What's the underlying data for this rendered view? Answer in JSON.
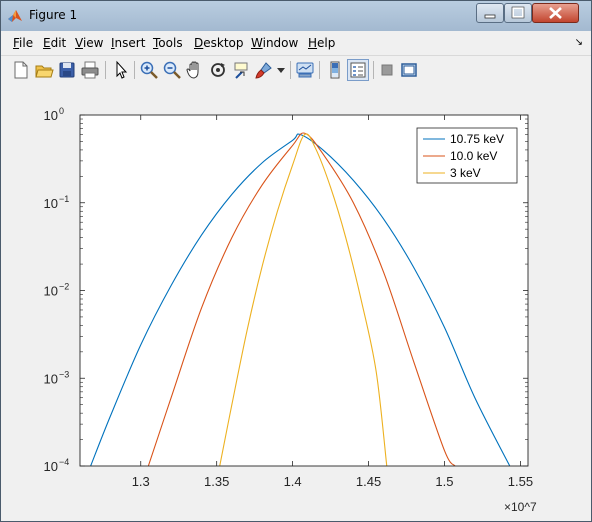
{
  "window": {
    "title": "Figure 1"
  },
  "menu": [
    {
      "label": "File"
    },
    {
      "label": "Edit"
    },
    {
      "label": "View"
    },
    {
      "label": "Insert"
    },
    {
      "label": "Tools"
    },
    {
      "label": "Desktop"
    },
    {
      "label": "Window"
    },
    {
      "label": "Help"
    }
  ],
  "toolbar": {
    "icons": [
      "new-figure-icon",
      "open-file-icon",
      "save-icon",
      "print-icon",
      "pointer-icon",
      "zoom-in-icon",
      "zoom-out-icon",
      "pan-icon",
      "rotate-3d-icon",
      "data-cursor-icon",
      "brush-icon",
      "link-plot-icon",
      "colorbar-icon",
      "legend-icon",
      "hide-tools-icon",
      "show-tools-icon"
    ]
  },
  "chart_data": {
    "type": "line",
    "title": "",
    "xlabel": "",
    "ylabel": "",
    "x_multiplier": "×10^7",
    "xlim": [
      1.26,
      1.555
    ],
    "ylim": [
      0.0001,
      1
    ],
    "yscale": "log",
    "grid": false,
    "legend_position": "top-right",
    "x_ticks": [
      "1.3",
      "1.35",
      "1.4",
      "1.45",
      "1.5",
      "1.55"
    ],
    "x_tick_values": [
      1.3,
      1.35,
      1.4,
      1.45,
      1.5,
      1.55
    ],
    "y_tick_values": [
      1,
      0.1,
      0.01,
      0.001,
      0.0001
    ],
    "series": [
      {
        "name": "10.75 keV",
        "color": "#0072bd",
        "x": [
          1.267,
          1.28,
          1.3,
          1.32,
          1.34,
          1.36,
          1.38,
          1.4,
          1.405,
          1.42,
          1.44,
          1.46,
          1.48,
          1.5,
          1.52,
          1.543
        ],
        "y": [
          0.0001,
          0.00037,
          0.0024,
          0.0114,
          0.0428,
          0.1247,
          0.2857,
          0.5145,
          0.6,
          0.4,
          0.18,
          0.065,
          0.018,
          0.0038,
          0.0006,
          0.0001
        ]
      },
      {
        "name": "10.0 keV",
        "color": "#d95319",
        "x": [
          1.305,
          1.32,
          1.34,
          1.36,
          1.38,
          1.4,
          1.408,
          1.42,
          1.44,
          1.46,
          1.48,
          1.5,
          1.507
        ],
        "y": [
          0.0001,
          0.0006,
          0.0063,
          0.04,
          0.16,
          0.45,
          0.62,
          0.36,
          0.1,
          0.016,
          0.0015,
          0.00015,
          0.0001
        ]
      },
      {
        "name": "3 keV",
        "color": "#edb120",
        "x": [
          1.352,
          1.36,
          1.37,
          1.38,
          1.39,
          1.4,
          1.408,
          1.415,
          1.425,
          1.435,
          1.445,
          1.455,
          1.462
        ],
        "y": [
          0.0001,
          0.0005,
          0.0035,
          0.019,
          0.08,
          0.27,
          0.6,
          0.42,
          0.15,
          0.04,
          0.008,
          0.0012,
          0.0001
        ]
      }
    ]
  }
}
